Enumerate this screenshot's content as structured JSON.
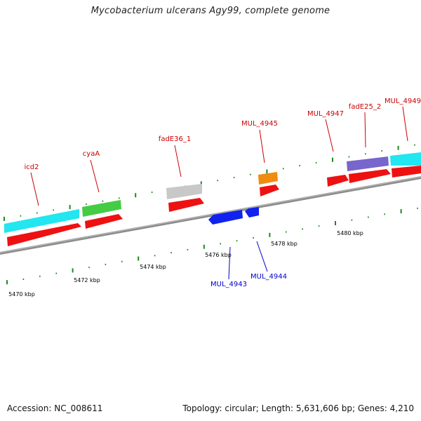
{
  "title": "Mycobacterium ulcerans Agy99, complete genome",
  "footer": {
    "accession": "Accession: NC_008611",
    "summary": "Topology: circular; Length: 5,631,606 bp; Genes: 4,210"
  },
  "colors": {
    "backbone": "#8c8c8c",
    "tick": "#1a8a1a",
    "forward_label": "#cc0000",
    "reverse_label": "#0000cc",
    "red": "#ee1111",
    "cyan": "#22e6f0",
    "green": "#44cc44",
    "gray": "#c8c8c8",
    "orange": "#f08c10",
    "purple": "#7766cc",
    "blue": "#1122ee"
  },
  "kbp_labels": [
    "5470 kbp",
    "5472 kbp",
    "5474 kbp",
    "5476 kbp",
    "5478 kbp",
    "5480 kbp"
  ],
  "forward_labels": [
    "icd2",
    "cyaA",
    "fadE36_1",
    "MUL_4945",
    "MUL_4947",
    "fadE25_2",
    "MUL_4949"
  ],
  "reverse_labels": [
    "MUL_4943",
    "MUL_4944"
  ]
}
